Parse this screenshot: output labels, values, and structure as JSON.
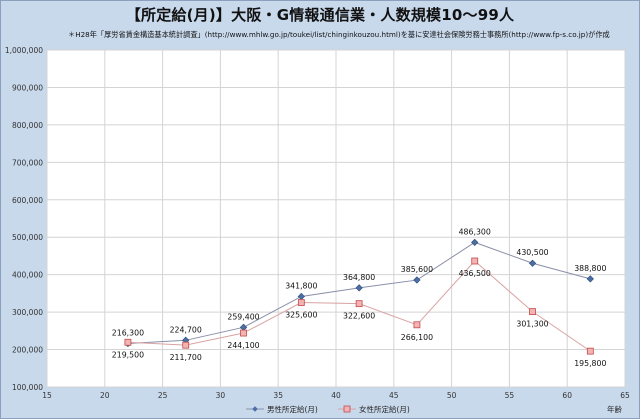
{
  "chart_data": {
    "type": "line",
    "title": "【所定給(月)】大阪・G情報通信業・人数規模10〜99人",
    "subtitle": "＊H28年「厚労省賃金構造基本統計調査」(http://www.mhlw.go.jp/toukei/list/chinginkouzou.html)を基に安達社会保険労務士事務所(http://www.fp-s.co.jp)が作成",
    "xlabel": "年齢",
    "ylabel": "",
    "xlim": [
      15,
      65
    ],
    "ylim": [
      100000,
      1000000
    ],
    "x_ticks": [
      "15",
      "20",
      "25",
      "30",
      "35",
      "40",
      "45",
      "50",
      "55",
      "60",
      "65"
    ],
    "y_ticks": [
      "100,000",
      "200,000",
      "300,000",
      "400,000",
      "500,000",
      "600,000",
      "700,000",
      "800,000",
      "900,000",
      "1,000,000"
    ],
    "grid": true,
    "legend_position": "bottom",
    "series": [
      {
        "name": "男性所定給(月)",
        "color": "#4a6fa5",
        "marker": "diamond",
        "x": [
          22,
          27,
          32,
          37,
          42,
          47,
          52,
          57,
          62
        ],
        "values": [
          216300,
          224700,
          259400,
          341800,
          364800,
          385600,
          486300,
          430500,
          388800
        ],
        "labels": [
          "216,300",
          "224,700",
          "259,400",
          "341,800",
          "364,800",
          "385,600",
          "486,300",
          "430,500",
          "388,800"
        ]
      },
      {
        "name": "女性所定給(月)",
        "color": "#e07a7a",
        "marker": "square",
        "x": [
          22,
          27,
          32,
          37,
          42,
          47,
          52,
          57,
          62
        ],
        "values": [
          219500,
          211700,
          244100,
          325600,
          322600,
          266100,
          436500,
          301300,
          195800
        ],
        "labels": [
          "219,500",
          "211,700",
          "244,100",
          "325,600",
          "322,600",
          "266,100",
          "436,500",
          "301,300",
          "195,800"
        ]
      }
    ]
  }
}
